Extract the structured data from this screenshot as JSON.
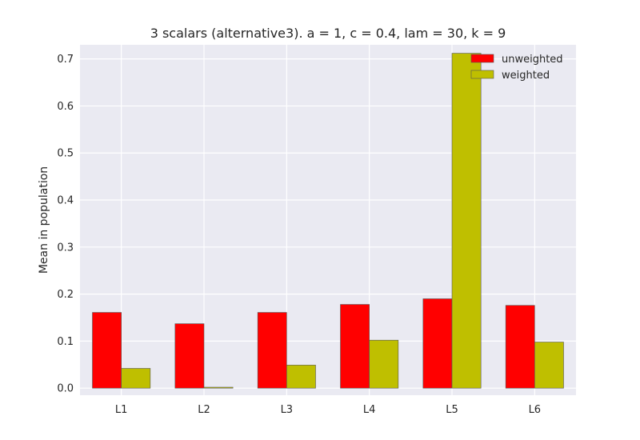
{
  "chart_data": {
    "type": "bar",
    "title": "3 scalars (alternative3). a = 1, c = 0.4, lam = 30, k = 9",
    "xlabel": "",
    "ylabel": "Mean in population",
    "categories": [
      "L1",
      "L2",
      "L3",
      "L4",
      "L5",
      "L6"
    ],
    "series": [
      {
        "name": "unweighted",
        "color": "#ff0000",
        "values": [
          0.161,
          0.137,
          0.161,
          0.178,
          0.19,
          0.176
        ]
      },
      {
        "name": "weighted",
        "color": "#bfbf00",
        "values": [
          0.042,
          0.002,
          0.049,
          0.102,
          0.712,
          0.098
        ]
      }
    ],
    "ylim": [
      -0.015,
      0.73
    ],
    "yticks": [
      "0.0",
      "0.1",
      "0.2",
      "0.3",
      "0.4",
      "0.5",
      "0.6",
      "0.7"
    ],
    "grid": true,
    "legend_position": "top-right",
    "background": "#eaeaf2"
  }
}
